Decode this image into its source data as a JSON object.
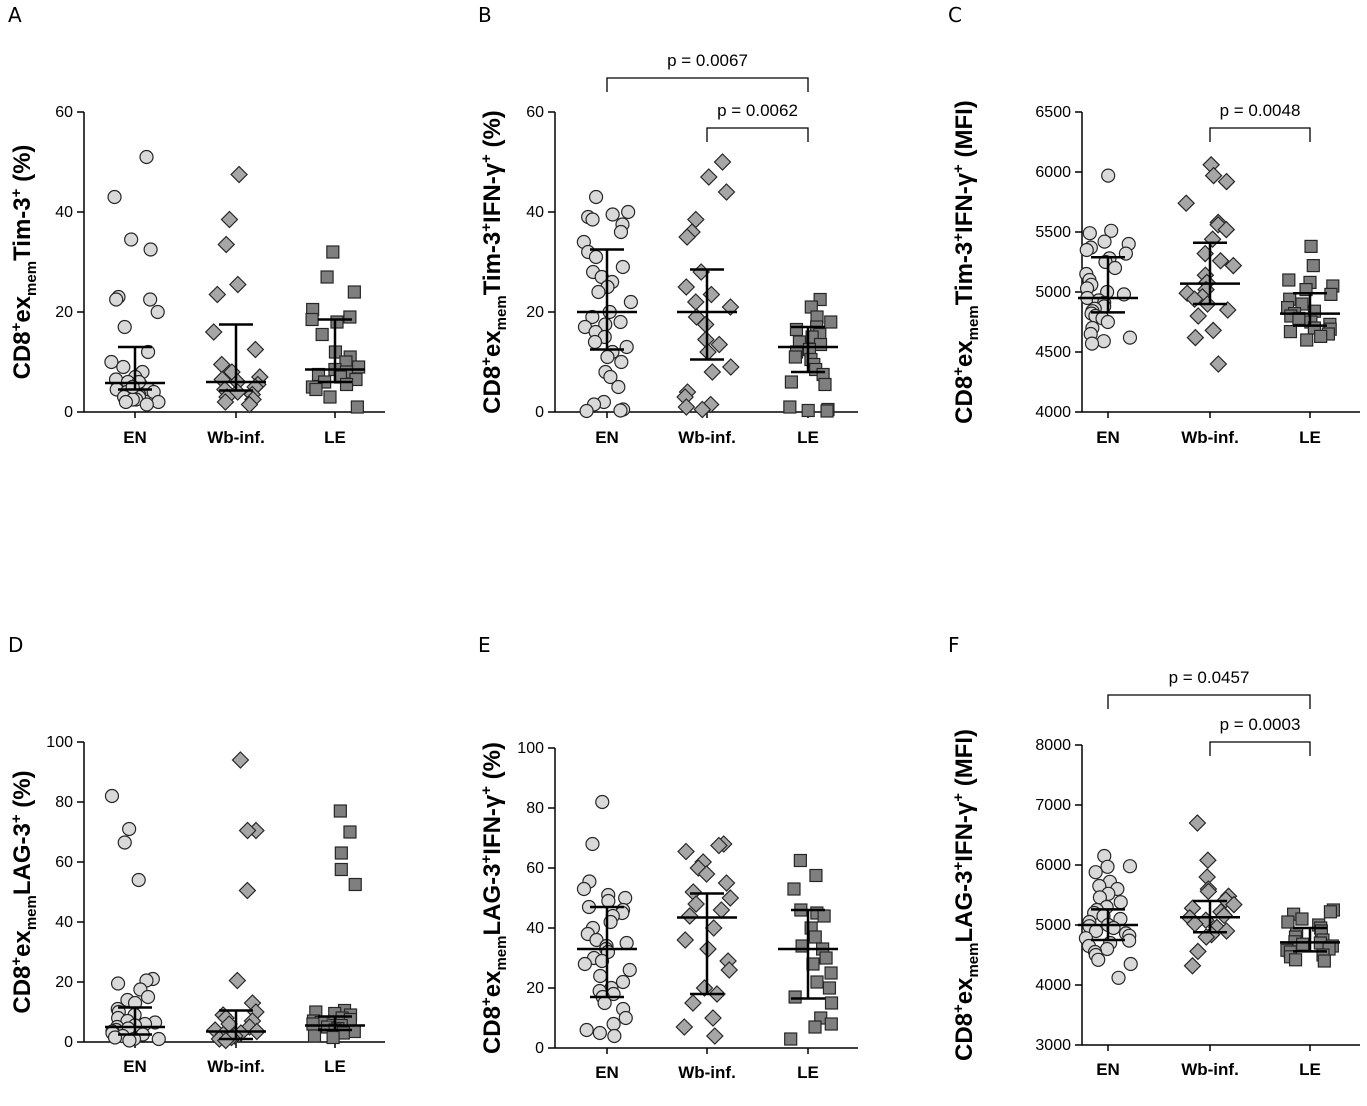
{
  "chart_data": [
    {
      "panel": "A",
      "type": "scatter",
      "categories": [
        "EN",
        "Wb-inf.",
        "LE"
      ],
      "ylabel": {
        "pre": "CD8",
        "sup1": "+",
        "mid": "ex",
        "sub": "mem",
        "post": "Tim-3",
        "sup2": "+",
        "tail": " (%)"
      },
      "ylim": [
        0,
        60
      ],
      "yticks": [
        "0",
        "20",
        "40",
        "60"
      ],
      "series": [
        {
          "name": "EN",
          "values": [
            51,
            43,
            34.5,
            32.5,
            23,
            22.5,
            22.5,
            20,
            17,
            12,
            10,
            9,
            8,
            7,
            6.5,
            6,
            5.5,
            5,
            5,
            4.5,
            4.5,
            4,
            4,
            3.5,
            3.5,
            3,
            3,
            2.5,
            2.5,
            2,
            2,
            1.5,
            6,
            5
          ],
          "median": 5.8,
          "q1": 4.5,
          "q3": 13
        },
        {
          "name": "Wb-inf.",
          "values": [
            47.5,
            38.5,
            33.5,
            25.5,
            23.5,
            16,
            12.5,
            9.5,
            8,
            7,
            6.5,
            6,
            5.5,
            5,
            4.5,
            4,
            3.5,
            3,
            2.5,
            2,
            1.5
          ],
          "median": 6,
          "q1": 4.3,
          "q3": 17.5
        },
        {
          "name": "LE",
          "values": [
            32,
            27,
            24,
            20.5,
            19,
            18.5,
            18,
            15.5,
            12,
            11,
            10,
            9,
            8.5,
            8,
            7.5,
            7,
            6.5,
            6,
            5.5,
            5,
            4.5,
            3,
            1
          ],
          "median": 8.5,
          "q1": 6,
          "q3": 18.5
        }
      ],
      "comparisons": []
    },
    {
      "panel": "B",
      "type": "scatter",
      "categories": [
        "EN",
        "Wb-inf.",
        "LE"
      ],
      "ylabel": {
        "pre": "CD8",
        "sup1": "+",
        "mid": "ex",
        "sub": "mem",
        "post": "Tim-3",
        "sup2": "+",
        "tail": "IFN-γ",
        "sup3": "+",
        "end": " (%)"
      },
      "ylim": [
        0,
        60
      ],
      "yticks": [
        "0",
        "20",
        "40",
        "60"
      ],
      "series": [
        {
          "name": "EN",
          "values": [
            43,
            40,
            39.5,
            39,
            38.5,
            37.5,
            36,
            34,
            32,
            31,
            29,
            28,
            27,
            26,
            25,
            24,
            22,
            20,
            19,
            18,
            17.5,
            17,
            16,
            15,
            14,
            13,
            12,
            11,
            10,
            8,
            7,
            5,
            2,
            1.5,
            0.5,
            0.3,
            0.2
          ],
          "median": 20,
          "q1": 12.5,
          "q3": 32.5
        },
        {
          "name": "Wb-inf.",
          "values": [
            50,
            47,
            44,
            38.5,
            36,
            35,
            28,
            25,
            23.5,
            22,
            21,
            19,
            17.5,
            14.5,
            13.5,
            12,
            9,
            8,
            4,
            3,
            1.5,
            1,
            0.5
          ],
          "median": 20,
          "q1": 10.5,
          "q3": 28.5
        },
        {
          "name": "LE",
          "values": [
            22.5,
            21,
            19,
            18,
            17,
            16.5,
            15.5,
            15,
            14,
            13.5,
            12.5,
            12,
            11,
            10.5,
            9.5,
            8.5,
            7.5,
            6,
            5.5,
            1,
            0.5,
            0.3,
            0.2
          ],
          "median": 13,
          "q1": 8,
          "q3": 17
        }
      ],
      "comparisons": [
        {
          "from": "EN",
          "to": "LE",
          "label": "p = 0.0067"
        },
        {
          "from": "Wb-inf.",
          "to": "LE",
          "label": "p = 0.0062"
        }
      ]
    },
    {
      "panel": "C",
      "type": "scatter",
      "categories": [
        "EN",
        "Wb-inf.",
        "LE"
      ],
      "ylabel": {
        "pre": "CD8",
        "sup1": "+",
        "mid": "ex",
        "sub": "mem",
        "post": "Tim-3",
        "sup2": "+",
        "tail": "IFN-γ",
        "sup3": "+",
        "end": " (MFI)"
      },
      "ylim": [
        4000,
        6500
      ],
      "yticks": [
        "4000",
        "4500",
        "5000",
        "5500",
        "6000",
        "6500"
      ],
      "series": [
        {
          "name": "EN",
          "values": [
            5970,
            5510,
            5490,
            5420,
            5400,
            5370,
            5350,
            5320,
            5280,
            5250,
            5200,
            5150,
            5100,
            5060,
            5030,
            5000,
            4980,
            4950,
            4930,
            4910,
            4880,
            4860,
            4840,
            4820,
            4800,
            4780,
            4750,
            4700,
            4650,
            4620,
            4590,
            4570
          ],
          "median": 4950,
          "q1": 4830,
          "q3": 5290
        },
        {
          "name": "Wb-inf.",
          "values": [
            6060,
            5970,
            5920,
            5740,
            5580,
            5560,
            5520,
            5440,
            5320,
            5260,
            5220,
            5140,
            5080,
            5020,
            4990,
            4960,
            4940,
            4900,
            4850,
            4800,
            4680,
            4620,
            4400
          ],
          "median": 5070,
          "q1": 4900,
          "q3": 5410
        },
        {
          "name": "LE",
          "values": [
            5380,
            5220,
            5100,
            5080,
            5050,
            5020,
            4980,
            4940,
            4900,
            4870,
            4840,
            4820,
            4800,
            4780,
            4750,
            4730,
            4700,
            4690,
            4670,
            4650,
            4630,
            4600
          ],
          "median": 4820,
          "q1": 4720,
          "q3": 4990
        }
      ],
      "comparisons": [
        {
          "from": "Wb-inf.",
          "to": "LE",
          "label": "p = 0.0048"
        }
      ]
    },
    {
      "panel": "D",
      "type": "scatter",
      "categories": [
        "EN",
        "Wb-inf.",
        "LE"
      ],
      "ylabel": {
        "pre": "CD8",
        "sup1": "+",
        "mid": "ex",
        "sub": "mem",
        "post": "LAG-3",
        "sup2": "+",
        "tail": " (%)"
      },
      "ylim": [
        0,
        100
      ],
      "yticks": [
        "0",
        "20",
        "40",
        "60",
        "80",
        "100"
      ],
      "series": [
        {
          "name": "EN",
          "values": [
            82,
            71,
            66.5,
            54,
            21,
            20.5,
            19.5,
            17.5,
            15,
            14,
            13,
            11,
            10,
            9,
            8,
            7,
            6.5,
            6,
            5.5,
            5,
            4.5,
            4,
            3.5,
            3,
            2.5,
            2,
            1.5,
            1,
            1,
            0.5
          ],
          "median": 5,
          "q1": 2.5,
          "q3": 11.5
        },
        {
          "name": "Wb-inf.",
          "values": [
            94,
            70.5,
            70.5,
            50.5,
            20.5,
            13,
            10,
            9,
            8,
            7,
            6,
            5,
            4,
            3.5,
            3,
            2.5,
            2,
            1.5,
            1,
            0.5
          ],
          "median": 3.5,
          "q1": 1,
          "q3": 10.5
        },
        {
          "name": "LE",
          "values": [
            77,
            70,
            63,
            57.5,
            52.5,
            10.5,
            10,
            9.5,
            9,
            8,
            7.5,
            7,
            6.5,
            6,
            5.5,
            5,
            4.5,
            4,
            3.5,
            3,
            2,
            1.5
          ],
          "median": 5.5,
          "q1": 4,
          "q3": 8.5
        }
      ],
      "comparisons": []
    },
    {
      "panel": "E",
      "type": "scatter",
      "categories": [
        "EN",
        "Wb-inf.",
        "LE"
      ],
      "ylabel": {
        "pre": "CD8",
        "sup1": "+",
        "mid": "ex",
        "sub": "mem",
        "post": "LAG-3",
        "sup2": "+",
        "tail": "IFN-γ",
        "sup3": "+",
        "end": " (%)"
      },
      "ylim": [
        0,
        100
      ],
      "yticks": [
        "0",
        "20",
        "40",
        "60",
        "80",
        "100"
      ],
      "series": [
        {
          "name": "EN",
          "values": [
            82,
            68,
            55.5,
            53,
            51,
            50,
            49,
            47,
            46,
            45,
            44,
            42,
            40,
            38,
            36,
            35,
            34,
            33,
            32,
            30,
            29,
            28,
            26,
            24,
            22,
            20,
            19,
            18,
            17,
            15,
            13,
            10,
            8,
            6,
            5,
            4
          ],
          "median": 33,
          "q1": 17,
          "q3": 47
        },
        {
          "name": "Wb-inf.",
          "values": [
            68,
            67.5,
            65.5,
            62,
            60,
            58,
            55,
            52,
            50,
            48,
            46,
            44,
            40,
            36,
            33,
            29,
            26,
            20,
            18,
            15,
            10,
            7,
            4
          ],
          "median": 43.5,
          "q1": 18,
          "q3": 51.5
        },
        {
          "name": "LE",
          "values": [
            62.5,
            57.5,
            53,
            46,
            45,
            44,
            40,
            37,
            34,
            33,
            30,
            28,
            25,
            22,
            20,
            17,
            15,
            10,
            8,
            7,
            3
          ],
          "median": 33,
          "q1": 16.5,
          "q3": 46
        }
      ],
      "comparisons": []
    },
    {
      "panel": "F",
      "type": "scatter",
      "categories": [
        "EN",
        "Wb-inf.",
        "LE"
      ],
      "ylabel": {
        "pre": "CD8",
        "sup1": "+",
        "mid": "ex",
        "sub": "mem",
        "post": "LAG-3",
        "sup2": "+",
        "tail": "IFN-γ",
        "sup3": "+",
        "end": " (MFI)"
      },
      "ylim": [
        3000,
        8000
      ],
      "yticks": [
        "3000",
        "4000",
        "5000",
        "6000",
        "7000",
        "8000"
      ],
      "series": [
        {
          "name": "EN",
          "values": [
            6150,
            5980,
            5970,
            5880,
            5720,
            5650,
            5600,
            5520,
            5460,
            5380,
            5300,
            5250,
            5200,
            5150,
            5100,
            5050,
            5000,
            4980,
            4950,
            4900,
            4860,
            4820,
            4780,
            4740,
            4700,
            4650,
            4600,
            4550,
            4500,
            4420,
            4350,
            4120
          ],
          "median": 5000,
          "q1": 4750,
          "q3": 5260
        },
        {
          "name": "Wb-inf.",
          "values": [
            6700,
            6080,
            5800,
            5600,
            5560,
            5480,
            5420,
            5340,
            5280,
            5220,
            5160,
            5120,
            5080,
            5020,
            4960,
            4900,
            4840,
            4800,
            4560,
            4320
          ],
          "median": 5130,
          "q1": 4880,
          "q3": 5400
        },
        {
          "name": "LE",
          "values": [
            5250,
            5220,
            5180,
            5100,
            5050,
            5000,
            4950,
            4900,
            4850,
            4800,
            4750,
            4720,
            4700,
            4680,
            4650,
            4600,
            4580,
            4550,
            4500,
            4470,
            4420,
            4400
          ],
          "median": 4710,
          "q1": 4560,
          "q3": 4950
        }
      ],
      "comparisons": [
        {
          "from": "EN",
          "to": "LE",
          "label": "p = 0.0457"
        },
        {
          "from": "Wb-inf.",
          "to": "LE",
          "label": "p = 0.0003"
        }
      ]
    }
  ],
  "colors": {
    "EN": "#d9d9d9",
    "Wb-inf.": "#a6a6a6",
    "LE": "#7f7f7f",
    "stroke": "#262626"
  },
  "markers": {
    "EN": "circle",
    "Wb-inf.": "diamond",
    "LE": "square"
  }
}
